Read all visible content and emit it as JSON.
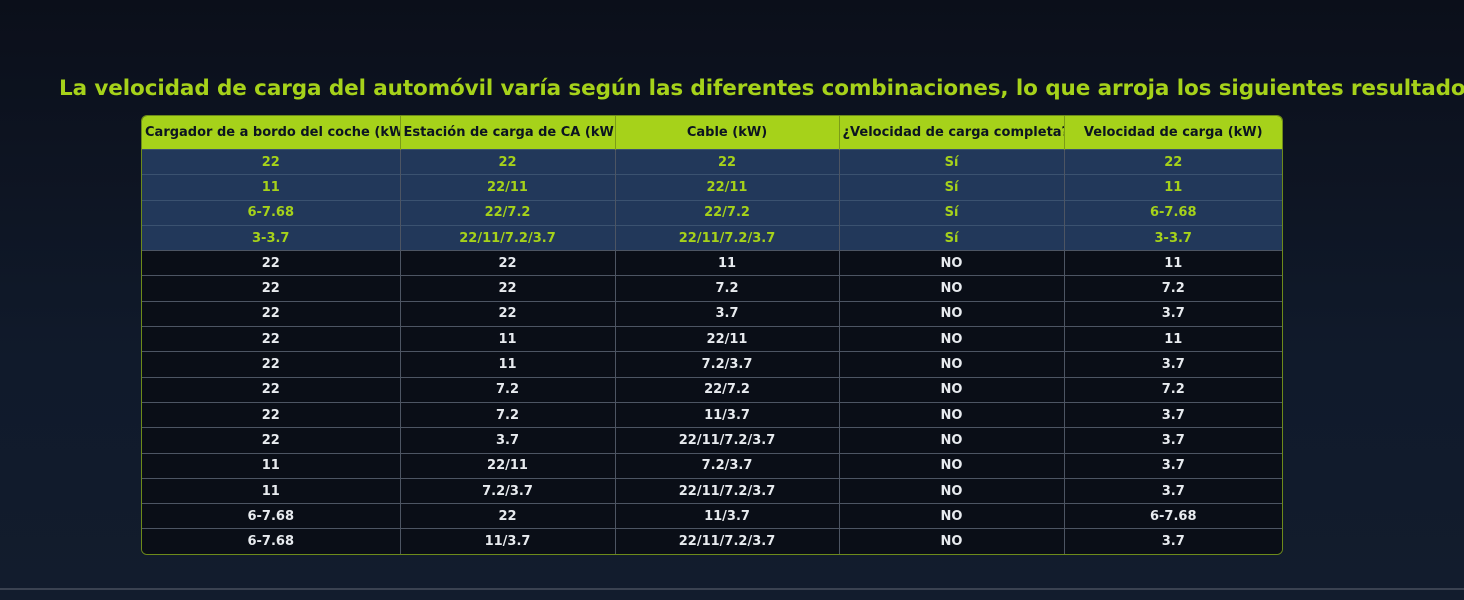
{
  "headline": "La velocidad de carga del automóvil varía según las diferentes combinaciones, lo que arroja los siguientes resultados.",
  "colors": {
    "accent": "#a6d21a",
    "highlight_row_bg": "#22385a",
    "table_bg": "#0a0e17"
  },
  "table": {
    "headers": [
      "Cargador de a bordo del coche (kW)",
      "Estación de carga de CA (kW)",
      "Cable (kW)",
      "¿Velocidad de carga completa?",
      "Velocidad de carga (kW)"
    ],
    "rows": [
      [
        "22",
        "22",
        "22",
        "Sí",
        "22"
      ],
      [
        "11",
        "22/11",
        "22/11",
        "Sí",
        "11"
      ],
      [
        "6-7.68",
        "22/7.2",
        "22/7.2",
        "Sí",
        "6-7.68"
      ],
      [
        "3-3.7",
        "22/11/7.2/3.7",
        "22/11/7.2/3.7",
        "Sí",
        "3-3.7"
      ],
      [
        "22",
        "22",
        "11",
        "NO",
        "11"
      ],
      [
        "22",
        "22",
        "7.2",
        "NO",
        "7.2"
      ],
      [
        "22",
        "22",
        "3.7",
        "NO",
        "3.7"
      ],
      [
        "22",
        "11",
        "22/11",
        "NO",
        "11"
      ],
      [
        "22",
        "11",
        "7.2/3.7",
        "NO",
        "3.7"
      ],
      [
        "22",
        "7.2",
        "22/7.2",
        "NO",
        "7.2"
      ],
      [
        "22",
        "7.2",
        "11/3.7",
        "NO",
        "3.7"
      ],
      [
        "22",
        "3.7",
        "22/11/7.2/3.7",
        "NO",
        "3.7"
      ],
      [
        "11",
        "22/11",
        "7.2/3.7",
        "NO",
        "3.7"
      ],
      [
        "11",
        "7.2/3.7",
        "22/11/7.2/3.7",
        "NO",
        "3.7"
      ],
      [
        "6-7.68",
        "22",
        "11/3.7",
        "NO",
        "6-7.68"
      ],
      [
        "6-7.68",
        "11/3.7",
        "22/11/7.2/3.7",
        "NO",
        "3.7"
      ]
    ]
  }
}
